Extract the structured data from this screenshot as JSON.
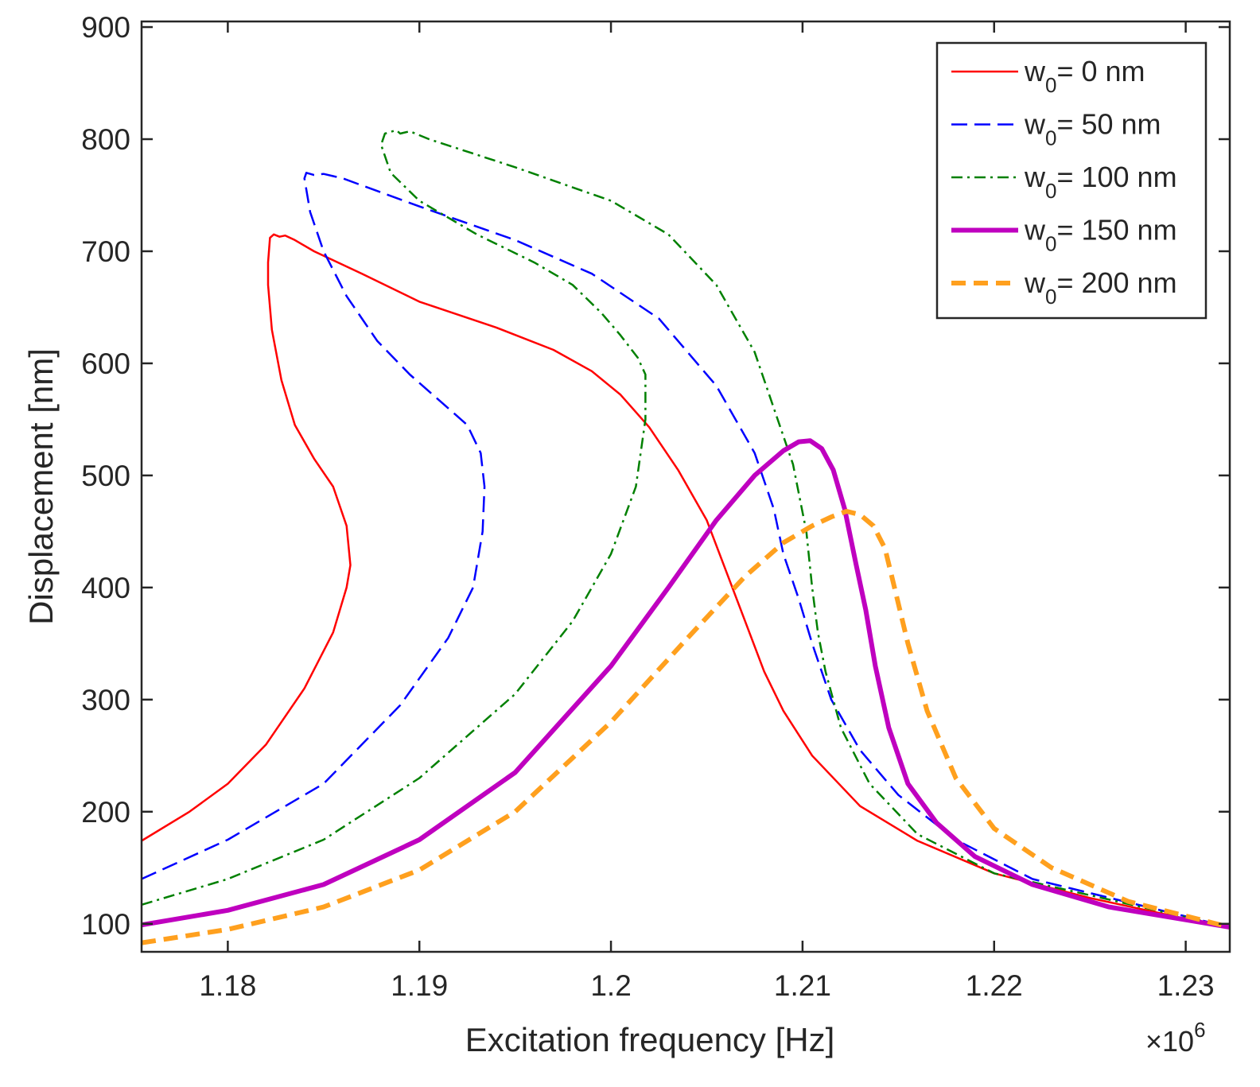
{
  "chart_data": {
    "type": "line",
    "title": "",
    "xlabel": "Excitation frequency [Hz]",
    "ylabel": "Displacement [nm]",
    "x_multiplier_label": "×10",
    "x_multiplier_exponent": "6",
    "xlim": [
      1.1755,
      1.2323
    ],
    "ylim": [
      75,
      905
    ],
    "x_ticks": [
      {
        "value": 1.18,
        "label": "1.18"
      },
      {
        "value": 1.19,
        "label": "1.19"
      },
      {
        "value": 1.2,
        "label": "1.2"
      },
      {
        "value": 1.21,
        "label": "1.21"
      },
      {
        "value": 1.22,
        "label": "1.22"
      },
      {
        "value": 1.23,
        "label": "1.23"
      }
    ],
    "y_ticks": [
      {
        "value": 100,
        "label": "100"
      },
      {
        "value": 200,
        "label": "200"
      },
      {
        "value": 300,
        "label": "300"
      },
      {
        "value": 400,
        "label": "400"
      },
      {
        "value": 500,
        "label": "500"
      },
      {
        "value": 600,
        "label": "600"
      },
      {
        "value": 700,
        "label": "700"
      },
      {
        "value": 800,
        "label": "800"
      },
      {
        "value": 900,
        "label": "900"
      }
    ],
    "grid": false,
    "legend_position": "top-right",
    "series": [
      {
        "name": "w0 = 0 nm",
        "legend_main": "w",
        "legend_sub": "0",
        "legend_rest": "= 0 nm",
        "color": "#ff0000",
        "style": "solid",
        "weight": "thin",
        "x": [
          1.1755,
          1.178,
          1.18,
          1.182,
          1.184,
          1.1855,
          1.1862,
          1.1864,
          1.1862,
          1.1855,
          1.1845,
          1.1835,
          1.1828,
          1.1823,
          1.1821,
          1.1821,
          1.1822,
          1.1824,
          1.1827,
          1.183,
          1.1835,
          1.1845,
          1.187,
          1.19,
          1.194,
          1.197,
          1.199,
          1.2005,
          1.202,
          1.2035,
          1.205,
          1.206,
          1.207,
          1.208,
          1.209,
          1.2105,
          1.213,
          1.216,
          1.22,
          1.225,
          1.2323
        ],
        "y": [
          174,
          200,
          225,
          260,
          310,
          360,
          400,
          420,
          455,
          490,
          515,
          545,
          585,
          630,
          670,
          690,
          712,
          715,
          713,
          714,
          710,
          700,
          680,
          655,
          632,
          612,
          593,
          572,
          543,
          505,
          460,
          415,
          370,
          325,
          290,
          250,
          205,
          174,
          145,
          123,
          96
        ]
      },
      {
        "name": "w0 = 50 nm",
        "legend_main": "w",
        "legend_sub": "0",
        "legend_rest": "= 50 nm",
        "color": "#0000ff",
        "style": "dashed",
        "weight": "thin",
        "x": [
          1.1755,
          1.18,
          1.185,
          1.189,
          1.1915,
          1.1928,
          1.1933,
          1.1934,
          1.1932,
          1.1925,
          1.1915,
          1.1895,
          1.1878,
          1.1862,
          1.185,
          1.1843,
          1.184,
          1.1841,
          1.1845,
          1.185,
          1.1855,
          1.186,
          1.19,
          1.195,
          1.199,
          1.2025,
          1.2055,
          1.2075,
          1.2085,
          1.209,
          1.2098,
          1.2105,
          1.2115,
          1.213,
          1.215,
          1.218,
          1.222,
          1.2323
        ],
        "y": [
          140,
          175,
          225,
          295,
          355,
          400,
          450,
          490,
          520,
          545,
          560,
          590,
          620,
          660,
          700,
          735,
          765,
          770,
          768,
          769,
          767,
          765,
          740,
          710,
          680,
          640,
          580,
          520,
          470,
          430,
          390,
          350,
          300,
          255,
          215,
          175,
          140,
          97
        ]
      },
      {
        "name": "w0 = 100 nm",
        "legend_main": "w",
        "legend_sub": "0",
        "legend_rest": "= 100 nm",
        "color": "#008000",
        "style": "dashdot",
        "weight": "thin",
        "x": [
          1.1755,
          1.18,
          1.185,
          1.19,
          1.195,
          1.198,
          1.2,
          1.2013,
          1.2018,
          1.2018,
          1.2014,
          1.2005,
          1.1995,
          1.198,
          1.196,
          1.193,
          1.19,
          1.1885,
          1.188,
          1.1882,
          1.1888,
          1.189,
          1.1895,
          1.1905,
          1.195,
          1.2,
          1.203,
          1.2055,
          1.2075,
          1.2085,
          1.2095,
          1.2102,
          1.2105,
          1.2108,
          1.2112,
          1.212,
          1.2135,
          1.216,
          1.22,
          1.2323
        ],
        "y": [
          117,
          140,
          175,
          230,
          305,
          370,
          430,
          490,
          550,
          590,
          605,
          625,
          645,
          670,
          690,
          715,
          745,
          770,
          795,
          805,
          808,
          805,
          807,
          800,
          775,
          745,
          715,
          670,
          610,
          560,
          510,
          450,
          400,
          360,
          325,
          275,
          225,
          180,
          145,
          97
        ]
      },
      {
        "name": "w0 = 150 nm",
        "legend_main": "w",
        "legend_sub": "0",
        "legend_rest": "= 150 nm",
        "color": "#bf00bf",
        "style": "solid",
        "weight": "thick",
        "x": [
          1.1755,
          1.18,
          1.185,
          1.19,
          1.195,
          1.2,
          1.203,
          1.2055,
          1.2075,
          1.209,
          1.2098,
          1.2104,
          1.211,
          1.2116,
          1.2122,
          1.2128,
          1.2133,
          1.2138,
          1.2145,
          1.2155,
          1.217,
          1.219,
          1.222,
          1.226,
          1.2323
        ],
        "y": [
          99,
          112,
          135,
          175,
          235,
          330,
          400,
          460,
          500,
          522,
          530,
          531,
          524,
          505,
          470,
          420,
          380,
          330,
          275,
          225,
          190,
          160,
          135,
          115,
          97
        ]
      },
      {
        "name": "w0 = 200 nm",
        "legend_main": "w",
        "legend_sub": "0",
        "legend_rest": "= 200 nm",
        "color": "#ffa01e",
        "style": "dashed",
        "weight": "thick",
        "x": [
          1.1755,
          1.18,
          1.185,
          1.19,
          1.195,
          1.2,
          1.204,
          1.207,
          1.209,
          1.2105,
          1.2115,
          1.2123,
          1.213,
          1.2137,
          1.2143,
          1.2148,
          1.2155,
          1.2165,
          1.218,
          1.22,
          1.223,
          1.227,
          1.2323
        ],
        "y": [
          83,
          95,
          115,
          148,
          200,
          280,
          355,
          410,
          440,
          455,
          463,
          468,
          465,
          455,
          435,
          400,
          350,
          290,
          230,
          185,
          150,
          120,
          97
        ]
      }
    ]
  }
}
